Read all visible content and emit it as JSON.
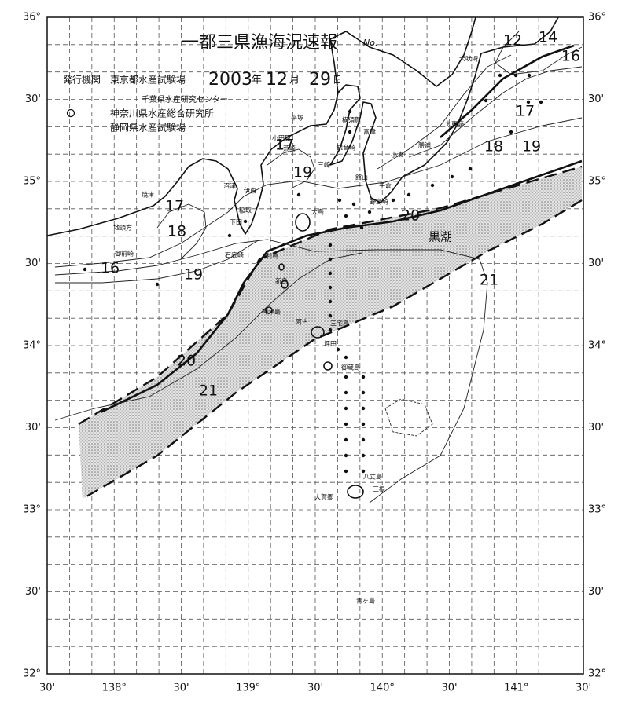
{
  "header": {
    "title": "一都三県漁海況速報",
    "number_mark": "No.",
    "issuer_label": "発行機関",
    "date_parts": [
      "2003",
      "年",
      "12",
      "月",
      "29",
      "日"
    ],
    "issuers": [
      "東京都水産試験場",
      "千葉県水産研究センター",
      "神奈川県水産総合研究所",
      "静岡県水産試験場"
    ]
  },
  "axes": {
    "left_lat_labels": [
      "36°",
      "30'",
      "35°",
      "30'",
      "34°",
      "30'",
      "33°",
      "30'",
      "32°"
    ],
    "right_lat_labels": [
      "36°",
      "30'",
      "35°",
      "30'",
      "34°",
      "30'",
      "33°",
      "30'",
      "32°"
    ],
    "bottom_lon_labels": [
      "30'",
      "138°",
      "30'",
      "139°",
      "30'",
      "140°",
      "30'",
      "141°",
      "30'"
    ]
  },
  "isotherm_labels": [
    "12",
    "14",
    "16",
    "17",
    "18",
    "19",
    "20",
    "21",
    "17",
    "19",
    "17",
    "18",
    "16",
    "19",
    "20",
    "21"
  ],
  "current_label": "黒潮",
  "places": [
    "犬吠埼",
    "太東崎",
    "勝浦",
    "小湊",
    "千倉",
    "野島埼",
    "館山",
    "富津",
    "横須賀",
    "平塚",
    "小田原",
    "荒崎",
    "観音崎",
    "三崎",
    "伊東",
    "沼津",
    "稲取",
    "下田",
    "石廊崎",
    "焼津",
    "地頭方",
    "御前崎",
    "大島",
    "利島",
    "新島",
    "神津島",
    "三宅島",
    "阿古",
    "坪田",
    "御蔵島",
    "八丈島",
    "大賀郷",
    "三根",
    "青ヶ島"
  ]
}
